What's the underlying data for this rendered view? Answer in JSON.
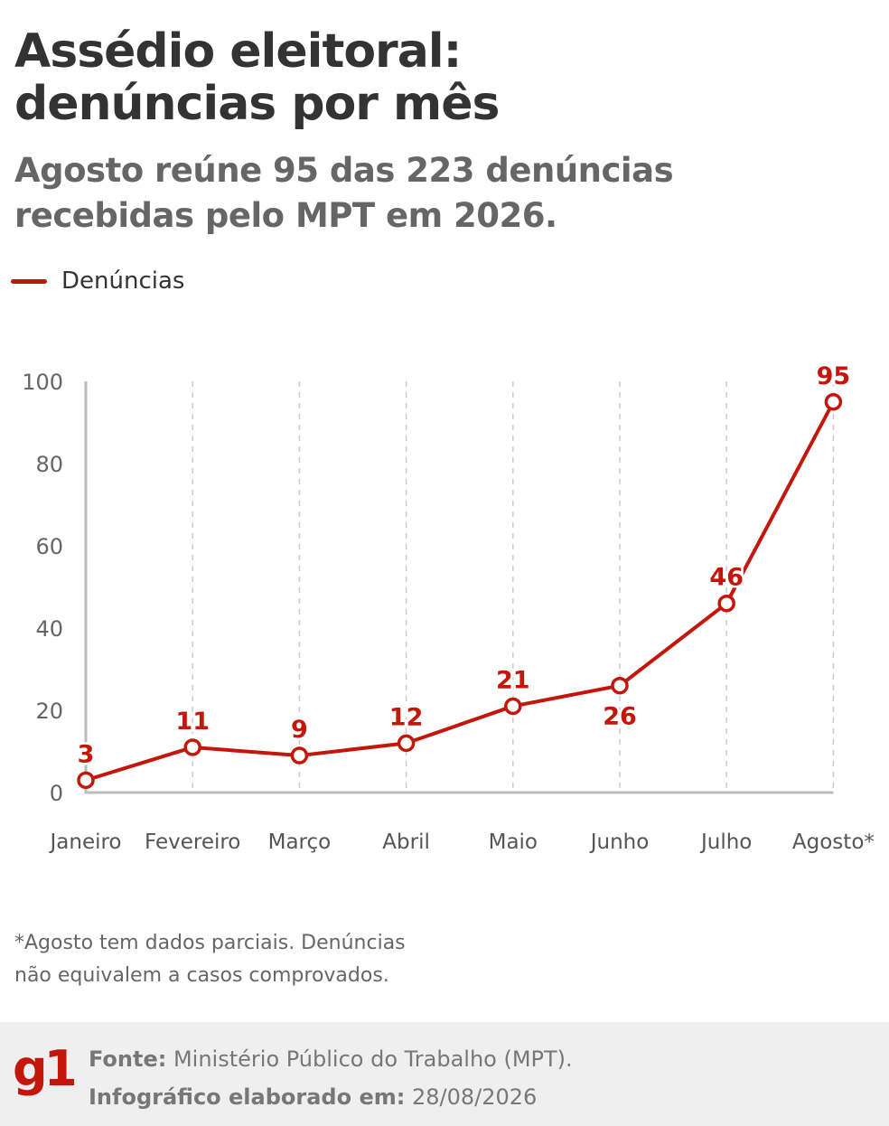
{
  "header": {
    "title_line1": "Assédio eleitoral:",
    "title_line2": "denúncias por mês",
    "subtitle_line1": "Agosto reúne 95 das 223 denúncias",
    "subtitle_line2": "recebidas pelo MPT em 2026."
  },
  "chart_data": {
    "type": "line",
    "categories": [
      "Janeiro",
      "Fevereiro",
      "Março",
      "Abril",
      "Maio",
      "Junho",
      "Julho",
      "Agosto*"
    ],
    "series": [
      {
        "name": "Denúncias",
        "values": [
          3,
          11,
          9,
          12,
          21,
          26,
          46,
          95
        ],
        "label_positions": [
          "above",
          "above",
          "above",
          "above",
          "above",
          "below",
          "above",
          "above"
        ]
      }
    ],
    "ylim": [
      0,
      100
    ],
    "yticks": [
      0,
      20,
      40,
      60,
      80,
      100
    ],
    "xlabel": "",
    "ylabel": "",
    "grid": "vertical dashed",
    "legend": "top-left",
    "color": "#c4170c"
  },
  "note": {
    "line1": "*Agosto tem dados parciais. Denúncias",
    "line2": "não equivalem a casos comprovados."
  },
  "footer": {
    "logo_text": "g1",
    "source_label": "Fonte:",
    "source_value": " Ministério Público do Trabalho (MPT).",
    "date_label": "Infográfico elaborado em:",
    "date_value": " 28/08/2026",
    "logo_color": "#c4170c",
    "background": "#efefef"
  }
}
